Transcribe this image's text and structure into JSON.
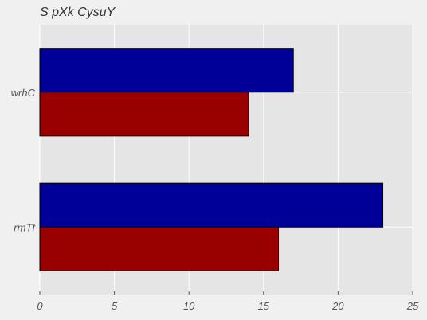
{
  "chart_data": {
    "type": "bar",
    "orientation": "horizontal",
    "title": "S pXk CysuY",
    "xlabel": "",
    "ylabel": "",
    "categories": [
      "wrhC",
      "rmTf"
    ],
    "series": [
      {
        "values": [
          17,
          23
        ],
        "color": "#000099"
      },
      {
        "values": [
          14,
          16
        ],
        "color": "#990000"
      }
    ],
    "xlim": [
      0,
      25
    ],
    "xticks": [
      0,
      5,
      10,
      15,
      20,
      25
    ],
    "grid": true,
    "background": "#e5e5e5"
  }
}
